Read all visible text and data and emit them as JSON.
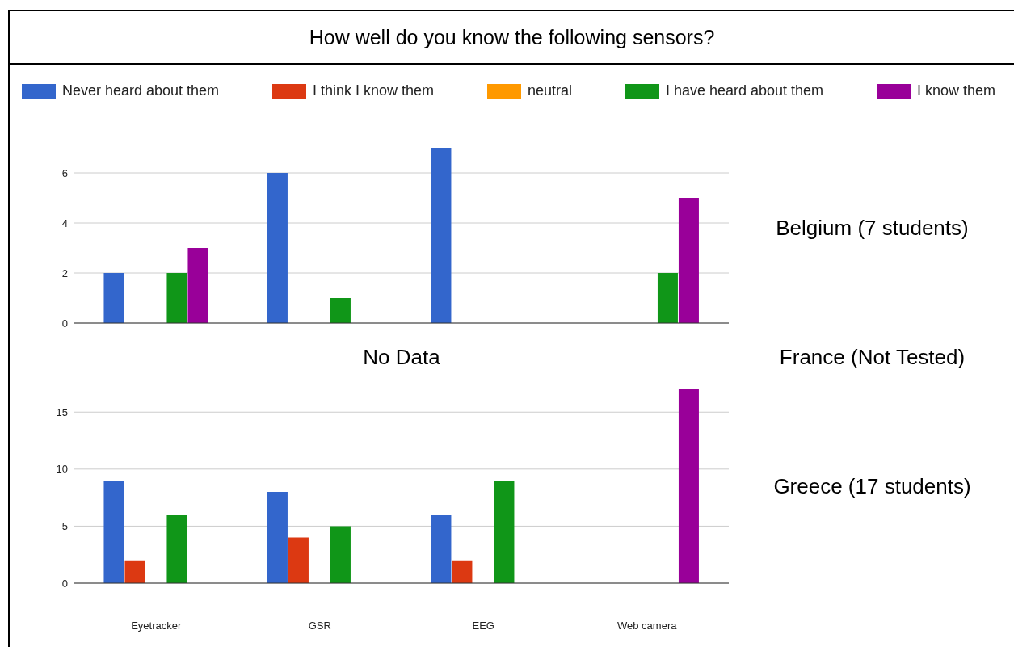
{
  "chart_data": [
    {
      "type": "bar",
      "title": "How well do you know the following sensors?",
      "categories": [
        null,
        null,
        null,
        null
      ],
      "series": [
        {
          "name": "Never heard about them",
          "color": "#3366cc",
          "values": [
            2,
            6,
            7,
            0
          ]
        },
        {
          "name": "I think I know them",
          "color": "#dc3912",
          "values": [
            0,
            0,
            0,
            0
          ]
        },
        {
          "name": "neutral",
          "color": "#ff9900",
          "values": [
            0,
            0,
            0,
            0
          ]
        },
        {
          "name": "I have heard about them",
          "color": "#109618",
          "values": [
            2,
            1,
            0,
            2
          ]
        },
        {
          "name": "I know them",
          "color": "#990099",
          "values": [
            3,
            0,
            0,
            5
          ]
        }
      ],
      "ylim": [
        0,
        7
      ],
      "yticks": [
        0,
        2,
        4,
        6
      ],
      "grid": "y",
      "legend": "top",
      "tick_labels": "y",
      "annotations": [
        "Belgium (7 students)"
      ]
    },
    {
      "type": "other",
      "annotations": [
        "No Data",
        "France (Not Tested)"
      ]
    },
    {
      "type": "bar",
      "categories": [
        "Eyetracker",
        "GSR",
        "EEG",
        "Web camera"
      ],
      "series": [
        {
          "color": "#3366cc",
          "values": [
            9,
            8,
            6,
            0
          ]
        },
        {
          "color": "#dc3912",
          "values": [
            2,
            4,
            2,
            0
          ]
        },
        {
          "color": "#ff9900",
          "values": [
            0,
            0,
            0,
            0
          ]
        },
        {
          "color": "#109618",
          "values": [
            6,
            5,
            9,
            0
          ]
        },
        {
          "color": "#990099",
          "values": [
            0,
            0,
            0,
            17
          ]
        }
      ],
      "ylim": [
        0,
        17
      ],
      "yticks": [
        0,
        5,
        10,
        15
      ],
      "grid": "y",
      "annotations": [
        "Greece (17 students)"
      ]
    }
  ]
}
